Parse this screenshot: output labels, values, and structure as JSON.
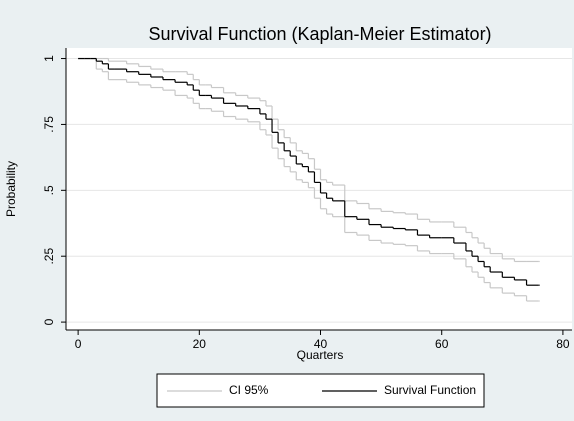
{
  "chart_data": {
    "type": "step",
    "title": "Survival Function (Kaplan-Meier Estimator)",
    "x_label": "Quarters",
    "y_label": "Probability",
    "x": [
      0,
      1,
      2,
      3,
      4,
      5,
      6,
      8,
      10,
      12,
      14,
      16,
      18,
      19,
      20,
      21,
      22,
      24,
      26,
      28,
      30,
      31,
      32,
      33,
      34,
      35,
      36,
      37,
      38,
      39,
      40,
      41,
      42,
      44,
      46,
      48,
      50,
      52,
      54,
      56,
      58,
      60,
      62,
      64,
      65,
      66,
      67,
      68,
      70,
      72,
      74,
      76
    ],
    "series": [
      {
        "name": "CI 95%",
        "color": "#c8c8c8",
        "upper": [
          1,
          1,
          1,
          1,
          1,
          0.99,
          0.99,
          0.98,
          0.97,
          0.96,
          0.95,
          0.95,
          0.94,
          0.92,
          0.9,
          0.9,
          0.89,
          0.87,
          0.86,
          0.85,
          0.84,
          0.82,
          0.77,
          0.73,
          0.7,
          0.68,
          0.65,
          0.64,
          0.62,
          0.58,
          0.54,
          0.53,
          0.52,
          0.46,
          0.45,
          0.43,
          0.42,
          0.415,
          0.41,
          0.39,
          0.38,
          0.38,
          0.36,
          0.34,
          0.32,
          0.3,
          0.28,
          0.26,
          0.24,
          0.23,
          0.23,
          0.23
        ],
        "lower": [
          1,
          1,
          1,
          0.96,
          0.95,
          0.92,
          0.92,
          0.91,
          0.9,
          0.89,
          0.88,
          0.86,
          0.85,
          0.83,
          0.81,
          0.81,
          0.8,
          0.78,
          0.77,
          0.76,
          0.73,
          0.71,
          0.66,
          0.62,
          0.59,
          0.57,
          0.54,
          0.53,
          0.51,
          0.47,
          0.43,
          0.41,
          0.4,
          0.34,
          0.33,
          0.31,
          0.3,
          0.295,
          0.29,
          0.27,
          0.26,
          0.26,
          0.24,
          0.21,
          0.19,
          0.17,
          0.15,
          0.13,
          0.11,
          0.1,
          0.08,
          0.08
        ]
      },
      {
        "name": "Survival Function",
        "color": "#000000",
        "values": [
          1,
          1,
          1,
          0.99,
          0.98,
          0.96,
          0.96,
          0.95,
          0.94,
          0.93,
          0.92,
          0.91,
          0.9,
          0.88,
          0.86,
          0.86,
          0.85,
          0.83,
          0.82,
          0.81,
          0.79,
          0.77,
          0.72,
          0.68,
          0.65,
          0.63,
          0.6,
          0.59,
          0.57,
          0.53,
          0.49,
          0.47,
          0.46,
          0.4,
          0.39,
          0.37,
          0.36,
          0.355,
          0.35,
          0.33,
          0.32,
          0.32,
          0.3,
          0.27,
          0.25,
          0.23,
          0.21,
          0.19,
          0.17,
          0.16,
          0.14,
          0.14
        ]
      }
    ],
    "xlim": [
      -2,
      81.5
    ],
    "xticks": [
      0,
      20,
      40,
      60,
      80
    ],
    "ylim": [
      -0.03,
      1.04
    ],
    "yticks": [
      0,
      {
        "value": 0.25,
        "label": ".25"
      },
      {
        "value": 0.5,
        "label": ".5"
      },
      {
        "value": 0.75,
        "label": ".75"
      },
      1
    ],
    "grid": true,
    "legend": "bottom"
  }
}
